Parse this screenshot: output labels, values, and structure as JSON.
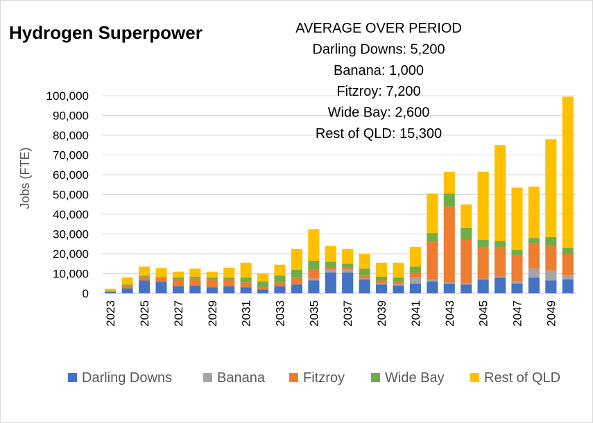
{
  "chart_data": {
    "type": "bar",
    "stacked": true,
    "title": "Hydrogen Superpower",
    "ylabel": "Jobs (FTE)",
    "xlabel": "",
    "ylim": [
      0,
      100000
    ],
    "ytick_step": 10000,
    "ytick_labels": [
      "0",
      "10,000",
      "20,000",
      "30,000",
      "40,000",
      "50,000",
      "60,000",
      "70,000",
      "80,000",
      "90,000",
      "100,000"
    ],
    "categories": [
      "2023",
      "2024",
      "2025",
      "2026",
      "2027",
      "2028",
      "2029",
      "2030",
      "2031",
      "2032",
      "2033",
      "2034",
      "2035",
      "2036",
      "2037",
      "2038",
      "2039",
      "2040",
      "2041",
      "2042",
      "2043",
      "2044",
      "2045",
      "2046",
      "2047",
      "2048",
      "2049",
      "2050"
    ],
    "xtick_labels": [
      "2023",
      "2025",
      "2027",
      "2029",
      "2031",
      "2033",
      "2035",
      "2037",
      "2039",
      "2041",
      "2043",
      "2045",
      "2047",
      "2049"
    ],
    "series": [
      {
        "name": "Darling Downs",
        "color": "#4472c4",
        "values": [
          800,
          2500,
          6500,
          5800,
          3500,
          4000,
          3000,
          3500,
          3000,
          2000,
          3500,
          4500,
          6500,
          10500,
          10500,
          7000,
          4500,
          4000,
          5000,
          6000,
          5000,
          4500,
          7000,
          8000,
          5000,
          8000,
          6500,
          7000
        ]
      },
      {
        "name": "Banana",
        "color": "#a5a5a5",
        "values": [
          0,
          0,
          0,
          0,
          0,
          0,
          0,
          0,
          0,
          0,
          0,
          0,
          1000,
          1500,
          1500,
          500,
          500,
          500,
          3000,
          1000,
          500,
          500,
          500,
          500,
          1000,
          4500,
          5000,
          2000
        ]
      },
      {
        "name": "Fitzroy",
        "color": "#ed7d31",
        "values": [
          300,
          1500,
          2000,
          2000,
          3500,
          3500,
          4000,
          3500,
          2500,
          1000,
          2000,
          3500,
          4500,
          1000,
          1000,
          1500,
          1500,
          1500,
          2500,
          19000,
          38500,
          22000,
          16000,
          15000,
          13000,
          12500,
          12500,
          11000
        ]
      },
      {
        "name": "Wide Bay",
        "color": "#70ad47",
        "values": [
          200,
          500,
          500,
          500,
          1000,
          1000,
          1000,
          1000,
          2500,
          3000,
          3500,
          4000,
          4500,
          3000,
          2000,
          3500,
          2000,
          2000,
          3000,
          4500,
          6500,
          6000,
          3500,
          3000,
          3000,
          3000,
          4500,
          3000
        ]
      },
      {
        "name": "Rest of QLD",
        "color": "#ffc000",
        "values": [
          1000,
          3500,
          4500,
          4500,
          3000,
          4000,
          3000,
          5000,
          7500,
          4000,
          5500,
          10500,
          16000,
          8000,
          7500,
          7500,
          7000,
          7500,
          10000,
          20000,
          11000,
          12000,
          34500,
          48500,
          31500,
          26000,
          49500,
          76500
        ]
      }
    ],
    "annotations": [
      "AVERAGE OVER PERIOD",
      "Darling Downs: 5,200",
      "Banana: 1,000",
      "Fitzroy: 7,200",
      "Wide Bay: 2,600",
      "Rest of QLD: 15,300"
    ],
    "legend_position": "bottom",
    "grid": true
  }
}
